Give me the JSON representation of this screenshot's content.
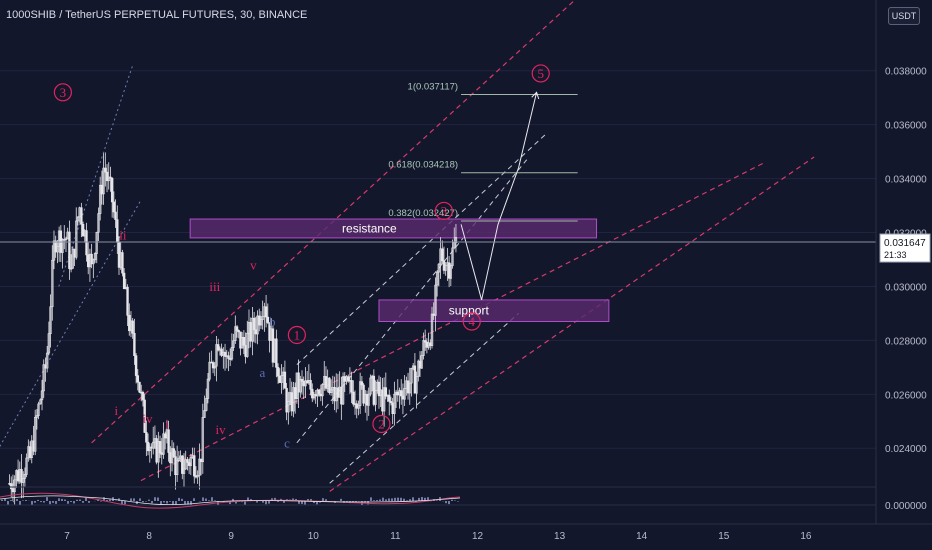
{
  "header": {
    "title": "1000SHIB / TetherUS PERPETUAL FUTURES, 30, BINANCE",
    "currency": "USDT"
  },
  "price_tag": {
    "value": "0.031647",
    "countdown": "21:33"
  },
  "colors": {
    "background": "#13172b",
    "candle": "#e6e6ea",
    "wave_label": "#e0245e",
    "channel_red": "#d63a6a",
    "channel_white": "#c9ccd6",
    "zone_fill": "#5b2a6e",
    "zone_border": "#b04dc8",
    "fib_line": "#9fb8a8",
    "fib_text": "#a9c7b8",
    "abc_label": "#5a6fb0",
    "axis_text": "#b8bccb",
    "crosshair": "#8a8fa3"
  },
  "chart_data": {
    "type": "candlestick",
    "y_axis": {
      "range": [
        0.0226,
        0.0404
      ],
      "ticks": [
        0.024,
        0.026,
        0.028,
        0.03,
        0.032,
        0.034,
        0.036,
        0.038
      ],
      "tick_labels": [
        "0.024000",
        "0.026000",
        "0.028000",
        "0.030000",
        "0.032000",
        "0.034000",
        "0.036000",
        "0.038000"
      ]
    },
    "x_axis": {
      "ticks": [
        7,
        8,
        9,
        10,
        11,
        12,
        13,
        14,
        15,
        16
      ],
      "tick_labels": [
        "7",
        "8",
        "9",
        "10",
        "11",
        "12",
        "13",
        "14",
        "15",
        "16"
      ]
    },
    "price_path": [
      [
        6.3,
        0.0227
      ],
      [
        6.55,
        0.0236
      ],
      [
        6.75,
        0.0272
      ],
      [
        6.85,
        0.0318
      ],
      [
        7.0,
        0.0318
      ],
      [
        7.05,
        0.0305
      ],
      [
        7.15,
        0.033
      ],
      [
        7.3,
        0.0306
      ],
      [
        7.45,
        0.0345
      ],
      [
        7.55,
        0.0332
      ],
      [
        7.65,
        0.0308
      ],
      [
        7.75,
        0.0288
      ],
      [
        7.85,
        0.027
      ],
      [
        7.95,
        0.0248
      ],
      [
        8.05,
        0.0238
      ],
      [
        8.2,
        0.0243
      ],
      [
        8.35,
        0.0232
      ],
      [
        8.5,
        0.0236
      ],
      [
        8.62,
        0.0234
      ],
      [
        8.7,
        0.0262
      ],
      [
        8.85,
        0.0282
      ],
      [
        8.95,
        0.0272
      ],
      [
        9.05,
        0.0282
      ],
      [
        9.15,
        0.0278
      ],
      [
        9.3,
        0.0286
      ],
      [
        9.4,
        0.0296
      ],
      [
        9.5,
        0.0278
      ],
      [
        9.6,
        0.0268
      ],
      [
        9.7,
        0.0254
      ],
      [
        9.8,
        0.0263
      ],
      [
        9.95,
        0.0262
      ],
      [
        10.1,
        0.0264
      ],
      [
        10.25,
        0.0259
      ],
      [
        10.4,
        0.0262
      ],
      [
        10.55,
        0.026
      ],
      [
        10.7,
        0.0262
      ],
      [
        10.85,
        0.0258
      ],
      [
        10.95,
        0.0256
      ],
      [
        11.1,
        0.0263
      ],
      [
        11.25,
        0.0266
      ],
      [
        11.35,
        0.0278
      ],
      [
        11.45,
        0.0285
      ],
      [
        11.55,
        0.0312
      ],
      [
        11.65,
        0.0308
      ],
      [
        11.75,
        0.0318
      ]
    ],
    "last_price": 0.031647,
    "fib_levels": [
      {
        "label": "1(0.037117)",
        "value": 0.037117
      },
      {
        "label": "0.618(0.034218)",
        "value": 0.034218
      },
      {
        "label": "0.382(0.032427)",
        "value": 0.032427
      }
    ],
    "zones": [
      {
        "label": "resistance",
        "y_top": 0.0325,
        "y_bottom": 0.0318,
        "x_from": 8.5,
        "x_to": 13.45
      },
      {
        "label": "support",
        "y_top": 0.0295,
        "y_bottom": 0.0287,
        "x_from": 10.8,
        "x_to": 13.6
      }
    ],
    "elliott_labels": [
      {
        "text": "3",
        "circled": true,
        "x": 6.95,
        "y": 0.0372
      },
      {
        "text": "ii",
        "circled": false,
        "x": 7.68,
        "y": 0.0319
      },
      {
        "text": "iii",
        "circled": false,
        "x": 8.8,
        "y": 0.03
      },
      {
        "text": "v",
        "circled": false,
        "x": 9.27,
        "y": 0.0308
      },
      {
        "text": "b",
        "circled": false,
        "x": 9.5,
        "y": 0.0287
      },
      {
        "text": "1",
        "circled": true,
        "x": 9.8,
        "y": 0.0282
      },
      {
        "text": "a",
        "circled": false,
        "x": 9.38,
        "y": 0.0268
      },
      {
        "text": "i",
        "circled": false,
        "x": 7.6,
        "y": 0.0254
      },
      {
        "text": "iv",
        "circled": false,
        "x": 7.98,
        "y": 0.0251
      },
      {
        "text": "i",
        "circled": false,
        "x": 8.22,
        "y": 0.0249
      },
      {
        "text": "iv",
        "circled": false,
        "x": 8.87,
        "y": 0.0247
      },
      {
        "text": "c",
        "circled": false,
        "x": 9.68,
        "y": 0.0242
      },
      {
        "text": "2",
        "circled": true,
        "x": 10.83,
        "y": 0.0249
      },
      {
        "text": "3",
        "circled": true,
        "x": 11.59,
        "y": 0.0328
      },
      {
        "text": "4",
        "circled": true,
        "x": 11.93,
        "y": 0.0287
      },
      {
        "text": "5",
        "circled": true,
        "x": 12.77,
        "y": 0.0379
      }
    ],
    "projection_path": [
      [
        11.8,
        0.0323
      ],
      [
        12.05,
        0.0295
      ],
      [
        12.25,
        0.0323
      ],
      [
        12.5,
        0.0344
      ],
      [
        12.72,
        0.0372
      ]
    ],
    "channels_red": [
      [
        [
          7.3,
          0.0242
        ],
        [
          13.5,
          0.0415
        ]
      ],
      [
        [
          7.9,
          0.0228
        ],
        [
          15.5,
          0.0346
        ]
      ],
      [
        [
          10.2,
          0.0224
        ],
        [
          16.1,
          0.0348
        ]
      ]
    ],
    "channels_white": [
      [
        [
          9.8,
          0.0271
        ],
        [
          12.85,
          0.0357
        ]
      ],
      [
        [
          9.8,
          0.0242
        ],
        [
          12.6,
          0.0347
        ]
      ],
      [
        [
          10.2,
          0.0227
        ],
        [
          12.5,
          0.029
        ]
      ]
    ],
    "wedge_lines": [
      [
        [
          6.9,
          0.03
        ],
        [
          7.8,
          0.0382
        ]
      ],
      [
        [
          6.0,
          0.0231
        ],
        [
          7.9,
          0.0332
        ]
      ]
    ]
  }
}
